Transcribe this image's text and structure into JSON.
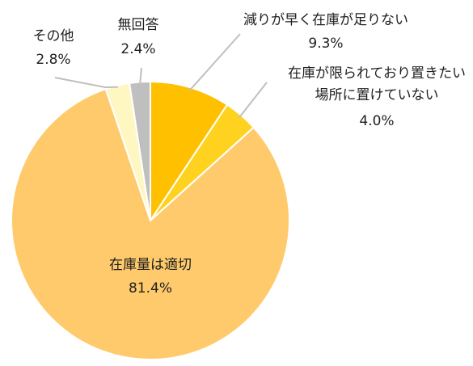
{
  "chart_data": {
    "type": "pie",
    "title": "",
    "slices": [
      {
        "label": "減りが早く在庫が足りない",
        "value": 9.3,
        "value_label": "9.3%",
        "color": "#FFC000"
      },
      {
        "label_lines": [
          "在庫が限られており置きたい",
          "場所に置けていない"
        ],
        "value": 4.0,
        "value_label": "4.0%",
        "color": "#FFD21F"
      },
      {
        "label": "在庫量は適切",
        "value": 81.4,
        "value_label": "81.4%",
        "color": "#FFCA6B"
      },
      {
        "label": "その他",
        "value": 2.8,
        "value_label": "2.8%",
        "color": "#FFF7C2"
      },
      {
        "label": "無回答",
        "value": 2.4,
        "value_label": "2.4%",
        "color": "#BFBFBF"
      }
    ]
  }
}
